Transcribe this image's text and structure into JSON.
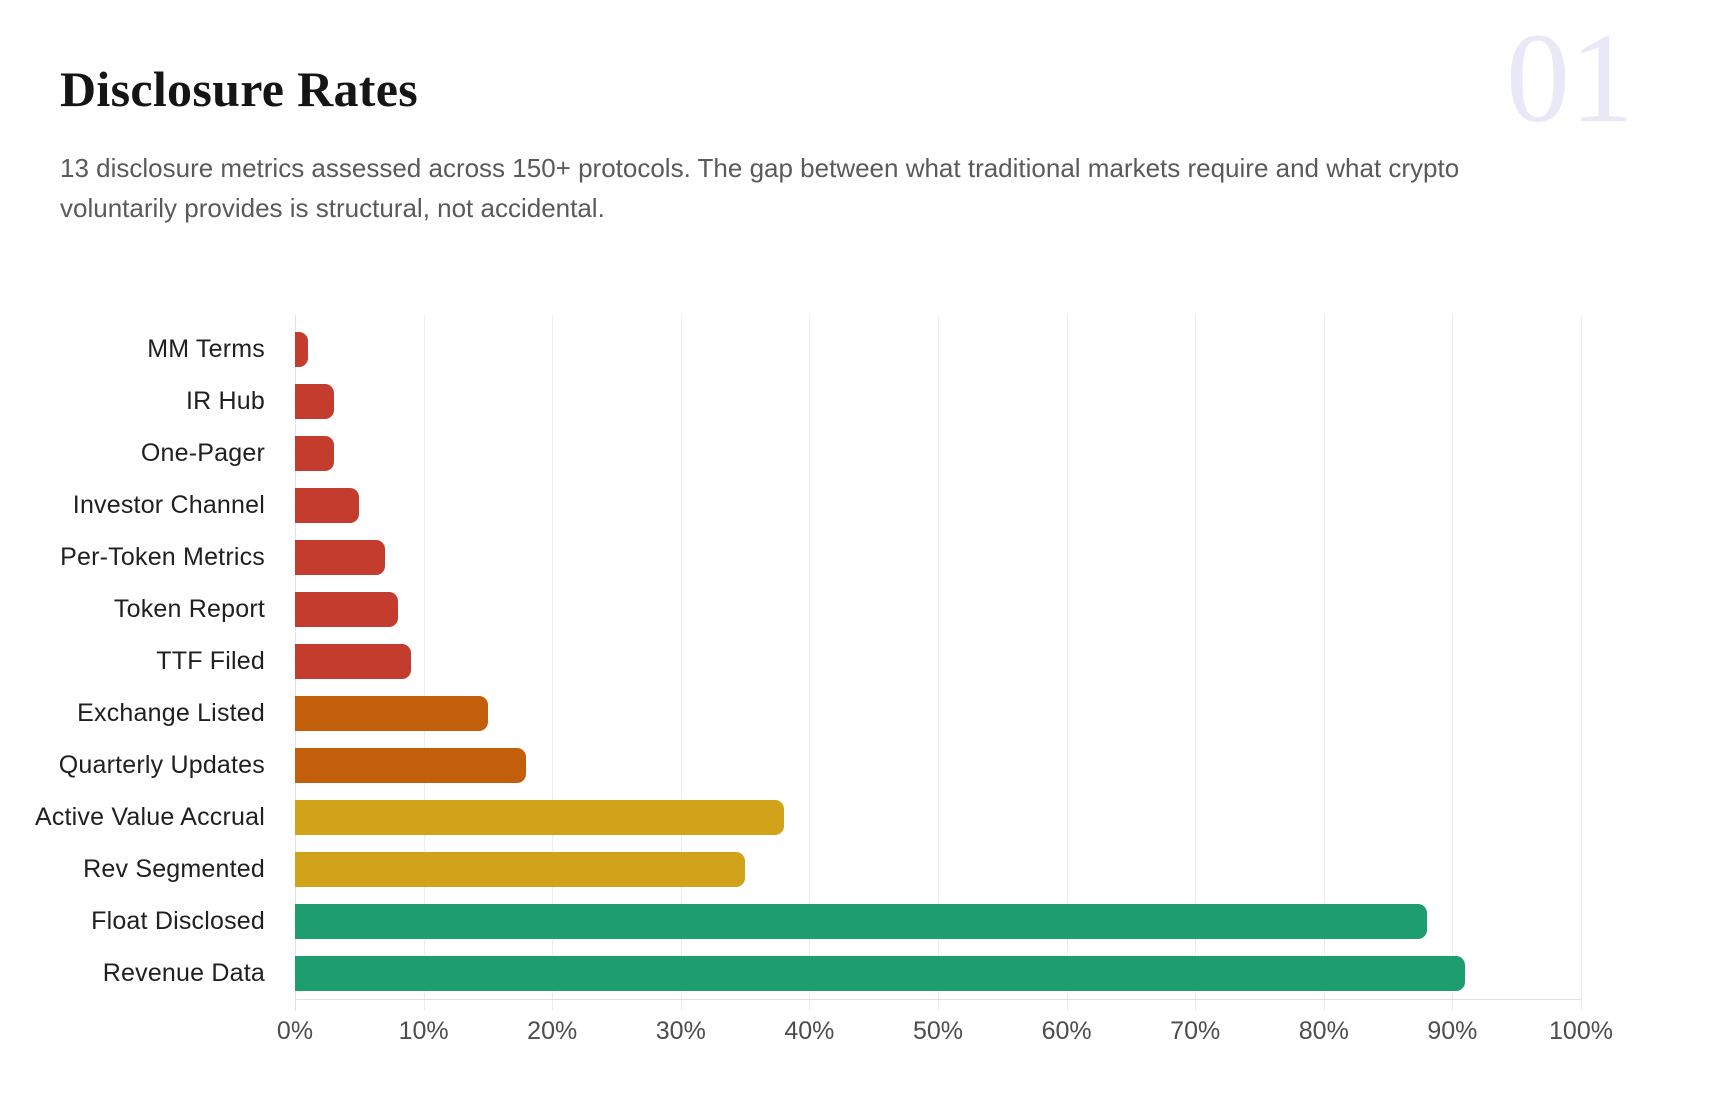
{
  "page": {
    "section_number": "01",
    "title": "Disclosure Rates",
    "subtitle": "13 disclosure metrics assessed across 150+ protocols. The gap between what traditional markets require and what crypto voluntarily provides is structural, not accidental."
  },
  "chart_data": {
    "type": "bar",
    "orientation": "horizontal",
    "title": "Disclosure Rates",
    "categories": [
      "MM Terms",
      "IR Hub",
      "One-Pager",
      "Investor Channel",
      "Per-Token Metrics",
      "Token Report",
      "TTF Filed",
      "Exchange Listed",
      "Quarterly Updates",
      "Active Value Accrual",
      "Rev Segmented",
      "Float Disclosed",
      "Revenue Data"
    ],
    "values": [
      1,
      3,
      3,
      5,
      7,
      8,
      9,
      15,
      18,
      38,
      35,
      88,
      91
    ],
    "unit": "%",
    "bar_colors": [
      "#C43C2D",
      "#C43C2D",
      "#C43C2D",
      "#C43C2D",
      "#C43C2D",
      "#C43C2D",
      "#C43C2D",
      "#C35F0B",
      "#C35F0B",
      "#D1A31B",
      "#D1A31B",
      "#1E9E6F",
      "#1E9E6F"
    ],
    "color_tiers": {
      "red_low": "#C43C2D",
      "orange_mid": "#C35F0B",
      "gold_high": "#D1A31B",
      "green_top": "#1E9E6F"
    },
    "xlabel": "",
    "ylabel": "",
    "xlim": [
      0,
      100
    ],
    "x_ticks": [
      "0%",
      "10%",
      "20%",
      "30%",
      "40%",
      "50%",
      "60%",
      "70%",
      "80%",
      "90%",
      "100%"
    ],
    "grid": "vertical",
    "legend": "none"
  }
}
